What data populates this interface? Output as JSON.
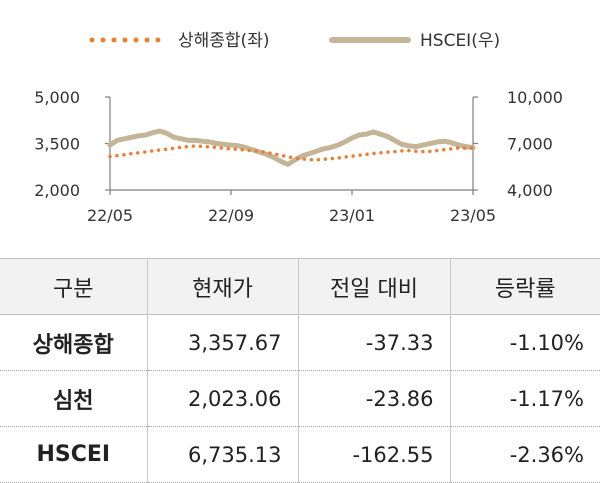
{
  "chart_data": {
    "type": "line",
    "title": "",
    "legend": {
      "placement": "top-center"
    },
    "x_ticks": [
      "22/05",
      "22/09",
      "23/01",
      "23/05"
    ],
    "x_tick_index": [
      0,
      17,
      34,
      51
    ],
    "left_axis": {
      "ticks": [
        "5,000",
        "3,500",
        "2,000"
      ],
      "range": [
        2000,
        5000
      ]
    },
    "right_axis": {
      "ticks": [
        "10,000",
        "7,000",
        "4,000"
      ],
      "range": [
        4000,
        10000
      ]
    },
    "grid": false,
    "series": [
      {
        "name": "상해종합(좌)",
        "axis": "left",
        "color": "#ed7d31",
        "style": "dotted",
        "values": [
          3080,
          3110,
          3140,
          3170,
          3200,
          3230,
          3260,
          3290,
          3320,
          3350,
          3380,
          3400,
          3420,
          3410,
          3390,
          3370,
          3350,
          3330,
          3310,
          3290,
          3270,
          3250,
          3210,
          3170,
          3120,
          3070,
          3030,
          3000,
          2980,
          2970,
          2990,
          3010,
          3030,
          3060,
          3090,
          3120,
          3150,
          3180,
          3200,
          3220,
          3240,
          3260,
          3270,
          3250,
          3240,
          3250,
          3270,
          3300,
          3330,
          3360,
          3350,
          3357
        ]
      },
      {
        "name": "HSCEI(우)",
        "axis": "right",
        "color": "#c4b596",
        "style": "solid",
        "values": [
          6900,
          7200,
          7300,
          7400,
          7500,
          7550,
          7700,
          7800,
          7650,
          7400,
          7300,
          7200,
          7200,
          7150,
          7100,
          7000,
          6950,
          6900,
          6850,
          6750,
          6600,
          6450,
          6300,
          6100,
          5850,
          5650,
          5950,
          6200,
          6350,
          6500,
          6650,
          6750,
          6900,
          7100,
          7350,
          7550,
          7600,
          7750,
          7600,
          7450,
          7200,
          6950,
          6850,
          6800,
          6900,
          7000,
          7100,
          7150,
          7050,
          6900,
          6800,
          6735
        ]
      }
    ]
  },
  "table": {
    "headers": [
      "구분",
      "현재가",
      "전일 대비",
      "등락률"
    ],
    "rows": [
      {
        "name": "상해종합",
        "price": "3,357.67",
        "change": "-37.33",
        "rate": "-1.10%"
      },
      {
        "name": "심천",
        "price": "2,023.06",
        "change": "-23.86",
        "rate": "-1.17%"
      },
      {
        "name": "HSCEI",
        "price": "6,735.13",
        "change": "-162.55",
        "rate": "-2.36%"
      }
    ]
  }
}
